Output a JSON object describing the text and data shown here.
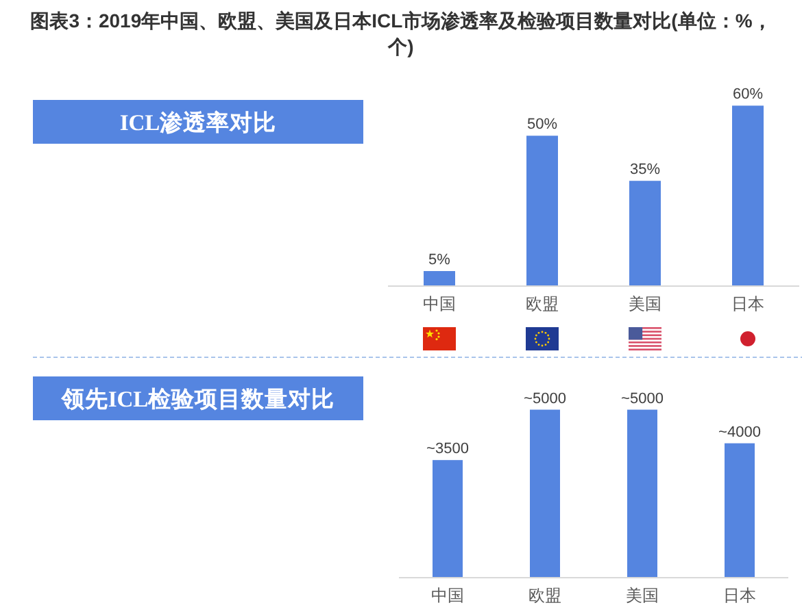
{
  "chart_data": [
    {
      "type": "bar",
      "title": "图表3：2019年中国、欧盟、美国及日本ICL市场渗透率及检验项目数量对比(单位：%，个)",
      "subtitle": "ICL渗透率对比",
      "categories": [
        "中国",
        "欧盟",
        "美国",
        "日本"
      ],
      "values": [
        5,
        50,
        35,
        60
      ],
      "value_labels": [
        "5%",
        "50%",
        "35%",
        "60%"
      ],
      "color": "#5585e0"
    },
    {
      "type": "bar",
      "subtitle": "领先ICL检验项目数量对比",
      "categories": [
        "中国",
        "欧盟",
        "美国",
        "日本"
      ],
      "values": [
        3500,
        5000,
        5000,
        4000
      ],
      "value_labels": [
        "~3500",
        "~5000",
        "~5000",
        "~4000"
      ],
      "color": "#5585e0"
    }
  ]
}
